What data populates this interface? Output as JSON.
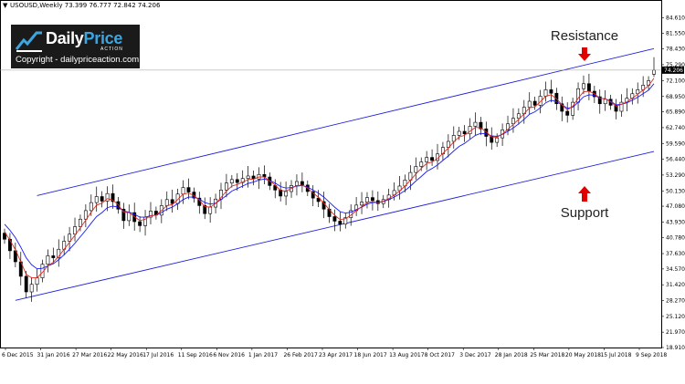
{
  "header": {
    "symbol_info": "USOUSD,Weekly  73.399 76.777 72.842 74.206",
    "menu_glyph": "▼"
  },
  "logo": {
    "brand_main": "Daily",
    "brand_accent": "Price",
    "brand_sub": "ACTION",
    "copyright": "Copyright - dailypriceaction.com"
  },
  "annotations": {
    "resistance": "Resistance",
    "support": "Support"
  },
  "colors": {
    "ema_fast": "#e0281e",
    "ema_slow": "#1a1aff",
    "channel": "#2222dd",
    "arrow": "#e00000",
    "candle": "#000000",
    "current_price_bg": "#000000"
  },
  "chart_data": {
    "type": "candlestick",
    "symbol": "USOUSD",
    "timeframe": "Weekly",
    "last_ohlc": {
      "open": 73.399,
      "high": 76.777,
      "low": 72.842,
      "close": 74.206
    },
    "current_price_label": "74.206",
    "ylim": [
      18.91,
      86.0
    ],
    "y_ticks": [
      "84.610",
      "81.550",
      "78.430",
      "75.290",
      "72.100",
      "68.950",
      "65.890",
      "62.740",
      "59.590",
      "56.440",
      "53.290",
      "50.130",
      "47.080",
      "43.930",
      "40.780",
      "37.630",
      "34.570",
      "31.420",
      "28.270",
      "25.120",
      "21.970",
      "18.910"
    ],
    "x_ticks": [
      "6 Dec 2015",
      "31 Jan 2016",
      "27 Mar 2016",
      "22 May 2016",
      "17 Jul 2016",
      "11 Sep 2016",
      "6 Nov 2016",
      "1 Jan 2017",
      "26 Feb 2017",
      "23 Apr 2017",
      "18 Jun 2017",
      "13 Aug 2017",
      "8 Oct 2017",
      "3 Dec 2017",
      "28 Jan 2018",
      "25 Mar 2018",
      "20 May 2018",
      "15 Jul 2018",
      "9 Sep 2018"
    ],
    "closes": [
      40.5,
      38.2,
      36.0,
      33.1,
      30.0,
      31.5,
      32.8,
      35.5,
      37.2,
      36.8,
      38.5,
      40.1,
      41.5,
      43.0,
      44.5,
      46.2,
      47.8,
      49.0,
      48.1,
      49.6,
      48.0,
      46.5,
      44.2,
      45.8,
      44.0,
      43.2,
      44.9,
      46.1,
      45.3,
      47.2,
      48.4,
      47.6,
      49.5,
      50.8,
      49.9,
      48.7,
      47.2,
      45.6,
      46.9,
      48.5,
      50.3,
      51.7,
      52.4,
      51.8,
      52.6,
      53.1,
      52.5,
      53.4,
      52.9,
      51.2,
      50.3,
      49.1,
      50.0,
      51.2,
      52.0,
      51.3,
      50.0,
      48.7,
      48.0,
      46.5,
      45.0,
      44.1,
      43.5,
      44.8,
      46.2,
      47.3,
      47.9,
      48.8,
      48.2,
      47.6,
      48.4,
      49.3,
      50.2,
      51.1,
      52.3,
      53.8,
      55.0,
      55.9,
      56.8,
      56.2,
      57.5,
      58.8,
      60.0,
      61.2,
      62.0,
      61.5,
      63.0,
      63.8,
      62.5,
      61.0,
      59.8,
      60.7,
      62.3,
      63.5,
      64.6,
      65.5,
      66.8,
      68.0,
      67.2,
      69.0,
      70.3,
      69.6,
      67.5,
      66.0,
      65.2,
      67.8,
      70.5,
      71.5,
      70.0,
      68.9,
      67.5,
      68.4,
      67.2,
      66.0,
      67.8,
      68.6,
      69.5,
      70.3,
      71.2,
      72.1,
      74.206
    ],
    "ema_fast": [
      42.0,
      40.3,
      38.4,
      36.0,
      33.5,
      32.8,
      32.8,
      33.9,
      35.2,
      35.9,
      37.1,
      38.5,
      39.9,
      41.3,
      42.8,
      44.3,
      45.9,
      47.3,
      47.7,
      48.6,
      48.3,
      47.4,
      45.9,
      45.8,
      45.0,
      44.2,
      44.5,
      45.2,
      45.3,
      46.2,
      47.2,
      47.4,
      48.4,
      49.5,
      49.7,
      49.2,
      48.3,
      47.0,
      46.9,
      47.6,
      48.8,
      50.1,
      51.1,
      51.4,
      51.9,
      52.4,
      52.5,
      52.9,
      52.9,
      52.1,
      51.3,
      50.2,
      50.1,
      50.6,
      51.2,
      51.3,
      50.7,
      49.7,
      48.9,
      47.7,
      46.4,
      45.3,
      44.4,
      44.6,
      45.3,
      46.2,
      47.0,
      47.8,
      48.0,
      47.8,
      48.1,
      48.6,
      49.3,
      50.1,
      51.1,
      52.3,
      53.5,
      54.6,
      55.6,
      55.9,
      56.6,
      57.6,
      58.7,
      59.9,
      60.9,
      61.2,
      62.0,
      62.8,
      62.7,
      61.9,
      60.9,
      60.8,
      61.5,
      62.4,
      63.4,
      64.4,
      65.5,
      66.7,
      66.9,
      67.9,
      69.0,
      69.3,
      68.5,
      67.3,
      66.3,
      67.0,
      68.6,
      69.9,
      70.0,
      69.5,
      68.6,
      68.5,
      67.9,
      67.0,
      67.4,
      67.9,
      68.6,
      69.4,
      70.2,
      71.1,
      72.6
    ],
    "ema_slow": [
      43.5,
      42.3,
      40.8,
      38.9,
      36.8,
      35.4,
      34.6,
      34.7,
      35.2,
      35.6,
      36.4,
      37.4,
      38.5,
      39.7,
      41.0,
      42.3,
      43.7,
      45.0,
      45.8,
      46.8,
      47.1,
      46.9,
      46.1,
      45.9,
      45.5,
      44.9,
      44.9,
      45.2,
      45.3,
      45.8,
      46.5,
      46.9,
      47.6,
      48.4,
      48.9,
      48.9,
      48.5,
      47.8,
      47.5,
      47.7,
      48.4,
      49.2,
      50.1,
      50.6,
      51.1,
      51.6,
      51.9,
      52.3,
      52.5,
      52.2,
      51.7,
      51.0,
      50.7,
      50.8,
      51.1,
      51.2,
      50.9,
      50.3,
      49.7,
      48.9,
      47.9,
      46.9,
      46.0,
      45.7,
      45.9,
      46.4,
      46.9,
      47.5,
      47.8,
      47.8,
      48.0,
      48.4,
      48.9,
      49.5,
      50.2,
      51.1,
      52.1,
      53.0,
      54.0,
      54.6,
      55.3,
      56.2,
      57.1,
      58.1,
      59.0,
      59.6,
      60.4,
      61.2,
      61.6,
      61.5,
      61.1,
      61.0,
      61.4,
      62.0,
      62.7,
      63.5,
      64.4,
      65.4,
      65.9,
      66.7,
      67.7,
      68.2,
      67.9,
      67.3,
      66.6,
      66.8,
      67.8,
      68.9,
      69.3,
      69.2,
      68.6,
      68.5,
      68.0,
      67.3,
      67.4,
      67.7,
      68.2,
      68.8,
      69.5,
      70.2,
      71.5
    ],
    "channel_upper": {
      "start": [
        6,
        49.2
      ],
      "end": [
        120,
        78.5
      ]
    },
    "channel_lower": {
      "start": [
        2,
        28.3
      ],
      "end": [
        120,
        58.0
      ]
    },
    "x_range": [
      0,
      120
    ],
    "grid": false,
    "legend": "none"
  }
}
